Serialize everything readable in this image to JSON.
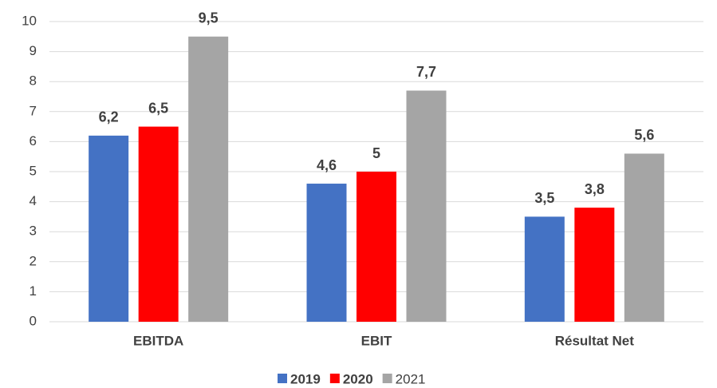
{
  "chart_data": {
    "type": "bar",
    "categories": [
      "EBITDA",
      "EBIT",
      "Résultat Net"
    ],
    "series": [
      {
        "name": "2019",
        "color": "#4472c4",
        "values": [
          6.2,
          4.6,
          3.5
        ],
        "value_labels": [
          "6,2",
          "4,6",
          "3,5"
        ]
      },
      {
        "name": "2020",
        "color": "#ff0000",
        "values": [
          6.5,
          5,
          3.8
        ],
        "value_labels": [
          "6,5",
          "5",
          "3,8"
        ]
      },
      {
        "name": "2021",
        "color": "#a5a5a5",
        "values": [
          9.5,
          7.7,
          5.6
        ],
        "value_labels": [
          "9,5",
          "7,7",
          "5,6"
        ]
      }
    ],
    "ylim": [
      0,
      10
    ],
    "yticks": [
      0,
      1,
      2,
      3,
      4,
      5,
      6,
      7,
      8,
      9,
      10
    ],
    "grid": true,
    "legend": "bottom"
  }
}
